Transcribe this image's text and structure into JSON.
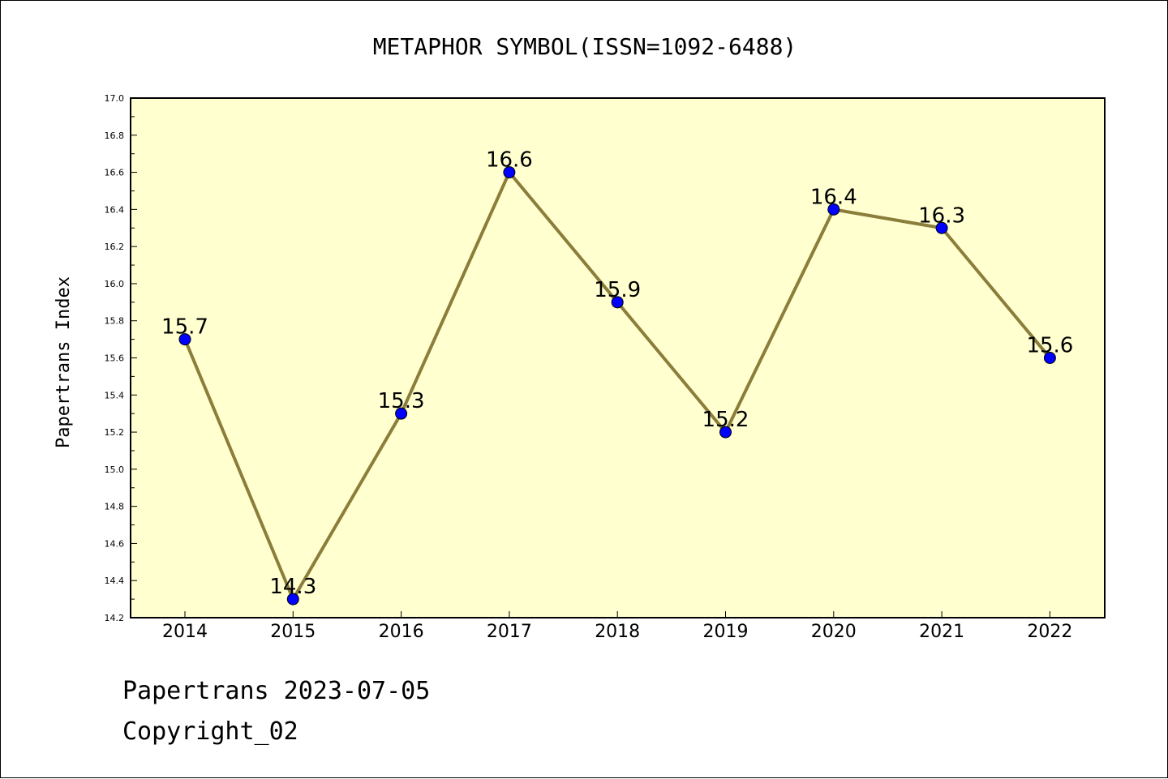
{
  "footer": {
    "line1": "Papertrans 2023-07-05",
    "line2": "Copyright_02"
  },
  "colors": {
    "plot_background": "#ffffd0",
    "line": "#8b7d3a",
    "marker": "#0000ff"
  },
  "chart_data": {
    "type": "line",
    "title": "METAPHOR SYMBOL(ISSN=1092-6488)",
    "xlabel": "",
    "ylabel": "Papertrans Index",
    "categories": [
      "2014",
      "2015",
      "2016",
      "2017",
      "2018",
      "2019",
      "2020",
      "2021",
      "2022"
    ],
    "values": [
      15.7,
      14.3,
      15.3,
      16.6,
      15.9,
      15.2,
      16.4,
      16.3,
      15.6
    ],
    "data_labels": [
      "15.7",
      "14.3",
      "15.3",
      "16.6",
      "15.9",
      "15.2",
      "16.4",
      "16.3",
      "15.6"
    ],
    "ylim": [
      14.2,
      17.0
    ],
    "yticks": [
      "14.2",
      "14.4",
      "14.6",
      "14.8",
      "15.0",
      "15.2",
      "15.4",
      "15.6",
      "15.8",
      "16.0",
      "16.2",
      "16.4",
      "16.6",
      "16.8",
      "17.0"
    ],
    "grid": false,
    "legend": "none"
  }
}
